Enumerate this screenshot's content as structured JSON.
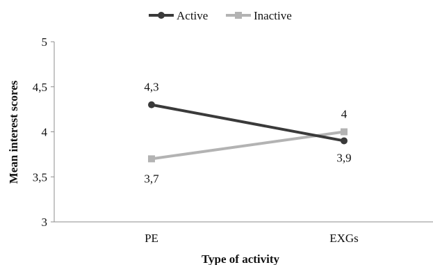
{
  "chart_data": {
    "type": "line",
    "title": "",
    "xlabel": "Type of activity",
    "ylabel": "Mean interest scores",
    "categories": [
      "PE",
      "EXGs"
    ],
    "ylim": [
      3,
      5
    ],
    "yticks": [
      3,
      3.5,
      4,
      4.5,
      5
    ],
    "ytick_labels": [
      "3",
      "3,5",
      "4",
      "4,5",
      "5"
    ],
    "grid": false,
    "legend_position": "top-center",
    "series": [
      {
        "name": "Active",
        "values": [
          4.3,
          3.9
        ],
        "labels": [
          "4,3",
          "3,9"
        ],
        "color": "#3a3a3a",
        "marker": "circle"
      },
      {
        "name": "Inactive",
        "values": [
          3.7,
          4.0
        ],
        "labels": [
          "3,7",
          "4"
        ],
        "color": "#b3b3b3",
        "marker": "square"
      }
    ]
  }
}
